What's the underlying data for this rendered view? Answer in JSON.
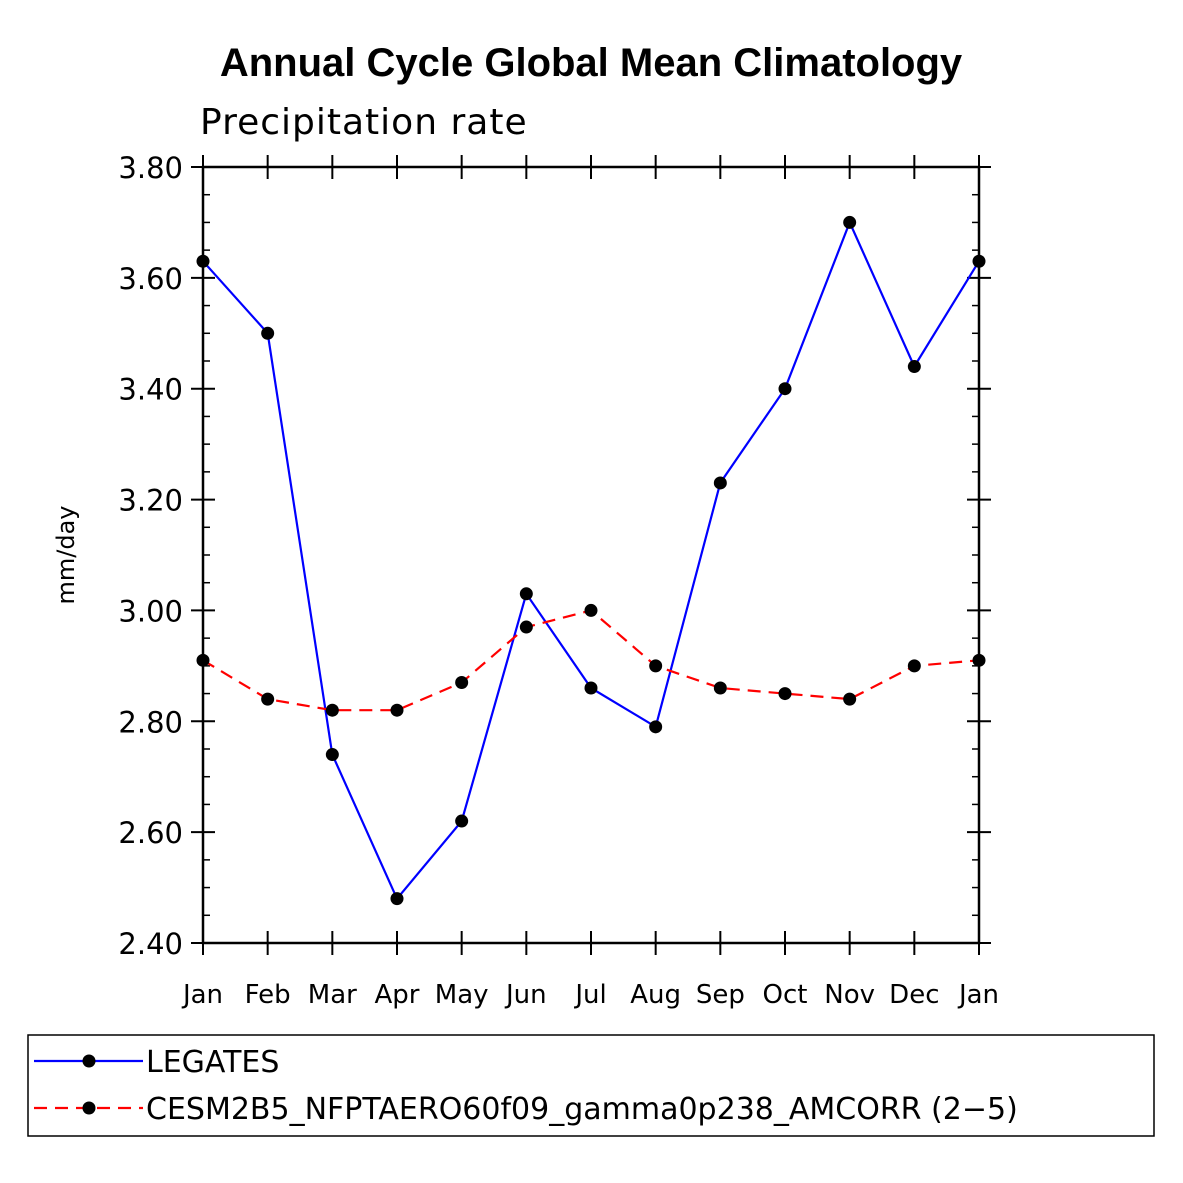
{
  "chart_data": {
    "type": "line",
    "title": "Annual Cycle Global Mean Climatology",
    "subtitle": "Precipitation rate",
    "ylabel": "mm/day",
    "xlabel": "",
    "ylim": [
      2.4,
      3.8
    ],
    "yticks": [
      "2.40",
      "2.60",
      "2.80",
      "3.00",
      "3.20",
      "3.40",
      "3.60",
      "3.80"
    ],
    "categories": [
      "Jan",
      "Feb",
      "Mar",
      "Apr",
      "May",
      "Jun",
      "Jul",
      "Aug",
      "Sep",
      "Oct",
      "Nov",
      "Dec",
      "Jan"
    ],
    "series": [
      {
        "name": "LEGATES",
        "color": "#0000ff",
        "dash": "solid",
        "values": [
          3.63,
          3.5,
          2.74,
          2.48,
          2.62,
          3.03,
          2.86,
          2.79,
          3.23,
          3.4,
          3.7,
          3.44,
          3.63
        ]
      },
      {
        "name": "CESM2B5_NFPTAERO60f09_gamma0p238_AMCORR (2−5)",
        "color": "#ff0000",
        "dash": "dashed",
        "values": [
          2.91,
          2.84,
          2.82,
          2.82,
          2.87,
          2.97,
          3.0,
          2.9,
          2.86,
          2.85,
          2.84,
          2.9,
          2.91
        ]
      }
    ],
    "legend_position": "bottom"
  }
}
